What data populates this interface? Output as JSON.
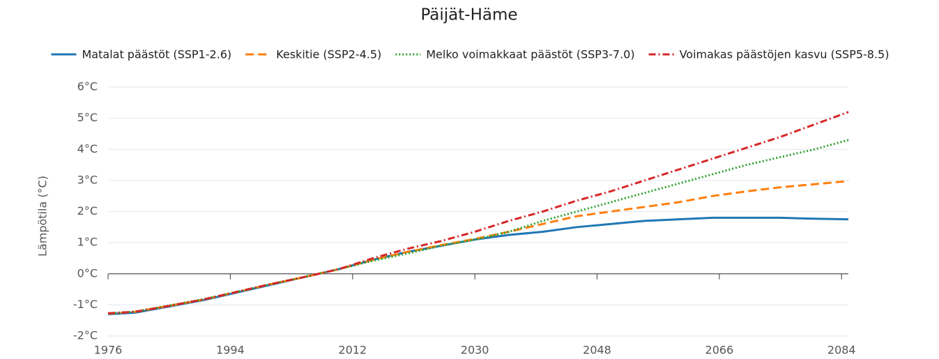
{
  "chart_data": {
    "type": "line",
    "title": "Päijät-Häme",
    "ylabel": "Lämpötila (°C)",
    "x": [
      1976,
      1980,
      1985,
      1990,
      1995,
      2000,
      2005,
      2010,
      2015,
      2020,
      2025,
      2030,
      2035,
      2040,
      2045,
      2050,
      2055,
      2060,
      2065,
      2070,
      2075,
      2080,
      2085
    ],
    "series": [
      {
        "name": "Matalat päästöt (SSP1-2.6)",
        "color": "#1f77b4",
        "dash": "solid",
        "values": [
          -1.3,
          -1.25,
          -1.05,
          -0.85,
          -0.6,
          -0.35,
          -0.1,
          0.15,
          0.45,
          0.7,
          0.9,
          1.1,
          1.25,
          1.35,
          1.5,
          1.6,
          1.7,
          1.75,
          1.8,
          1.8,
          1.8,
          1.77,
          1.75
        ]
      },
      {
        "name": "Keskitie (SSP2-4.5)",
        "color": "#ff7f0e",
        "dash": "dashed",
        "values": [
          -1.28,
          -1.22,
          -1.03,
          -0.83,
          -0.58,
          -0.33,
          -0.1,
          0.15,
          0.45,
          0.7,
          0.92,
          1.12,
          1.35,
          1.6,
          1.85,
          2.0,
          2.15,
          2.3,
          2.5,
          2.65,
          2.78,
          2.88,
          2.98
        ]
      },
      {
        "name": "Melko voimakkaat päästöt (SSP3-7.0)",
        "color": "#2ca02c",
        "dash": "dotted",
        "values": [
          -1.27,
          -1.22,
          -1.02,
          -0.82,
          -0.58,
          -0.33,
          -0.1,
          0.15,
          0.42,
          0.65,
          0.9,
          1.1,
          1.35,
          1.7,
          2.0,
          2.3,
          2.6,
          2.9,
          3.2,
          3.5,
          3.75,
          4.0,
          4.3
        ]
      },
      {
        "name": "Voimakas päästöjen kasvu (SSP5-8.5)",
        "color": "#d62728",
        "dash": "dashdot",
        "values": [
          -1.27,
          -1.22,
          -1.03,
          -0.83,
          -0.58,
          -0.33,
          -0.1,
          0.15,
          0.5,
          0.8,
          1.05,
          1.35,
          1.7,
          2.0,
          2.35,
          2.65,
          3.0,
          3.35,
          3.7,
          4.05,
          4.4,
          4.8,
          5.2
        ]
      }
    ],
    "xlim": [
      1976,
      2085
    ],
    "xticks": [
      1976,
      1994,
      2012,
      2030,
      2048,
      2066,
      2084
    ],
    "ylim": [
      -2,
      6
    ],
    "yticks": [
      {
        "value": -2,
        "label": "-2°C"
      },
      {
        "value": -1,
        "label": "-1°C"
      },
      {
        "value": 0,
        "label": "0°C"
      },
      {
        "value": 1,
        "label": "1°C"
      },
      {
        "value": 2,
        "label": "2°C"
      },
      {
        "value": 3,
        "label": "3°C"
      },
      {
        "value": 4,
        "label": "4°C"
      },
      {
        "value": 5,
        "label": "5°C"
      },
      {
        "value": 6,
        "label": "6°C"
      }
    ],
    "grid": true,
    "legend": "top"
  }
}
